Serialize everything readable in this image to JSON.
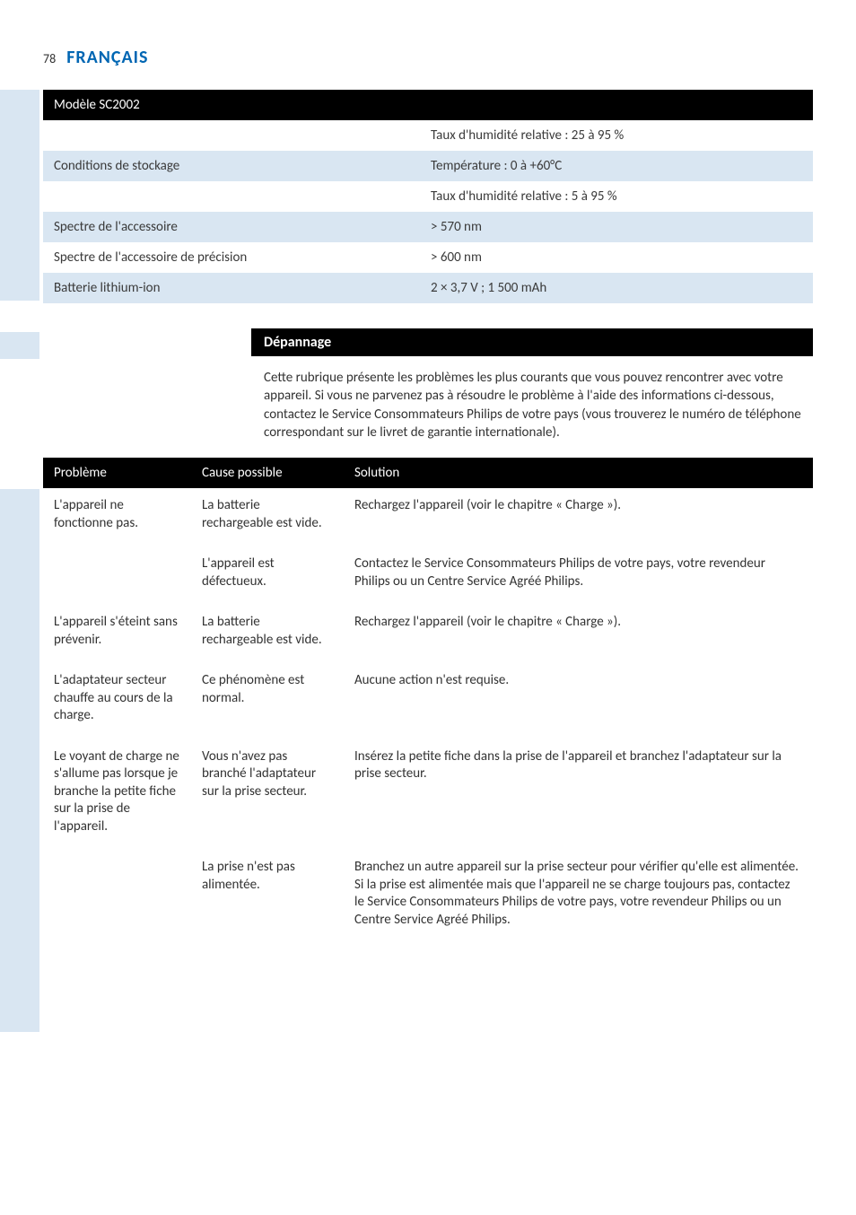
{
  "page": {
    "number": "78",
    "lang_title": "FRANÇAIS",
    "lang_title_color": "#0066b3"
  },
  "spec_table": {
    "header": "Modèle SC2002",
    "rows": [
      {
        "label": "",
        "value": "Taux d'humidité relative : 25 à 95 %",
        "tint": false
      },
      {
        "label": "Conditions de stockage",
        "value": "Température : 0 à +60°C",
        "tint": true
      },
      {
        "label": "",
        "value": "Taux d'humidité relative : 5 à 95 %",
        "tint": false
      },
      {
        "label": "Spectre de l'accessoire",
        "value": "> 570 nm",
        "tint": true
      },
      {
        "label": "Spectre de l'accessoire de précision",
        "value": "> 600 nm",
        "tint": false
      },
      {
        "label": "Batterie lithium-ion",
        "value": "2 × 3,7 V ; 1 500 mAh",
        "tint": true
      }
    ]
  },
  "troubleshoot": {
    "section_title": "Dépannage",
    "intro": "Cette rubrique présente les problèmes les plus courants que vous pouvez rencontrer avec votre appareil. Si vous ne parvenez pas à résoudre le problème à l'aide des informations ci-dessous, contactez le Service Consommateurs Philips de votre pays (vous trouverez le numéro de téléphone correspondant sur le livret de garantie internationale).",
    "headers": {
      "problem": "Problème",
      "cause": "Cause possible",
      "solution": "Solution"
    },
    "rows": [
      {
        "problem": "L'appareil ne fonctionne pas.",
        "cause": "La batterie rechargeable est vide.",
        "solution": "Rechargez l'appareil (voir le chapitre « Charge »)."
      },
      {
        "problem": "",
        "cause": "L'appareil est défectueux.",
        "solution": "Contactez le Service Consommateurs Philips de votre pays, votre revendeur Philips ou un Centre Service Agréé Philips."
      },
      {
        "problem": "L'appareil s'éteint sans prévenir.",
        "cause": "La batterie rechargeable est vide.",
        "solution": "Rechargez l'appareil (voir le chapitre « Charge »)."
      },
      {
        "problem": "L'adaptateur secteur chauffe au cours de la charge.",
        "cause": "Ce phénomène est normal.",
        "solution": "Aucune action n'est requise."
      },
      {
        "problem": "Le voyant de charge ne s'allume pas lorsque je branche la petite fiche sur la prise de l'appareil.",
        "cause": "Vous n'avez pas branché l'adaptateur sur la prise secteur.",
        "solution": "Insérez la petite fiche dans la prise de l'appareil et branchez l'adaptateur sur la prise secteur."
      },
      {
        "problem": "",
        "cause": "La prise n'est pas alimentée.",
        "solution": "Branchez un autre appareil sur la prise secteur pour vérifier qu'elle est alimentée. Si la prise est alimentée mais que l'appareil ne se charge toujours pas, contactez le Service Consommateurs Philips de votre pays, votre revendeur Philips ou un Centre Service Agréé Philips."
      }
    ]
  },
  "colors": {
    "tint": "#d9e6f2",
    "header_bg": "#000000",
    "header_fg": "#ffffff",
    "body_text": "#333333"
  }
}
